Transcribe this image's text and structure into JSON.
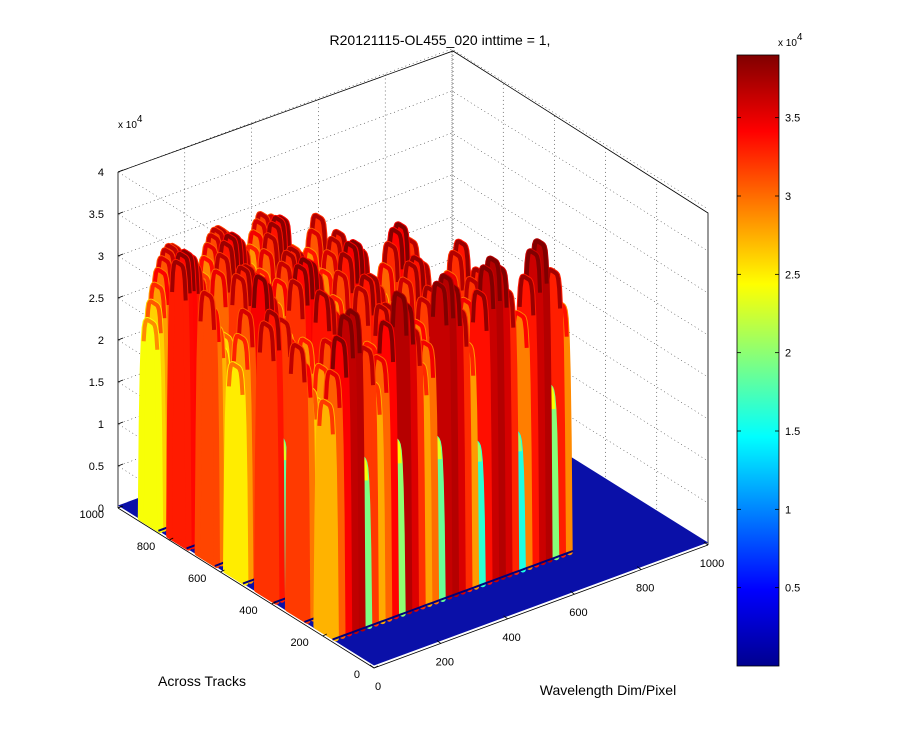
{
  "chart_data": {
    "type": "surface",
    "title": "R20121115-OL455_020 inttime = 1,",
    "xlabel": "Wavelength Dim/Pixel",
    "ylabel": "Across Tracks",
    "zlabel": "",
    "xlim": [
      0,
      1000
    ],
    "ylim": [
      0,
      1000
    ],
    "zlim": [
      0,
      40000
    ],
    "x_ticks": [
      "0",
      "200",
      "400",
      "600",
      "800",
      "1000"
    ],
    "y_ticks": [
      "0",
      "200",
      "400",
      "600",
      "800",
      "1000"
    ],
    "z_ticks": [
      "0",
      "0.5",
      "1",
      "1.5",
      "2",
      "2.5",
      "3",
      "3.5",
      "4"
    ],
    "z_multiplier": "x 10",
    "z_multiplier_exp": "4",
    "colormap": "jet",
    "grid": true,
    "colorbar": {
      "range": [
        0,
        39000
      ],
      "ticks": [
        "0.5",
        "1",
        "1.5",
        "2",
        "2.5",
        "3",
        "3.5"
      ],
      "multiplier": "x 10",
      "multiplier_exp": "4"
    },
    "bands": [
      {
        "y_center": 880,
        "peak": 32000,
        "x_start": 0,
        "x_end": 380
      },
      {
        "y_center": 770,
        "peak": 34000,
        "x_start": 0,
        "x_end": 430
      },
      {
        "y_center": 660,
        "peak": 33000,
        "x_start": 0,
        "x_end": 490
      },
      {
        "y_center": 550,
        "peak": 34500,
        "x_start": 0,
        "x_end": 540
      },
      {
        "y_center": 430,
        "peak": 33500,
        "x_start": 0,
        "x_end": 600
      },
      {
        "y_center": 310,
        "peak": 33000,
        "x_start": 0,
        "x_end": 650
      },
      {
        "y_center": 200,
        "peak": 37000,
        "x_start": 0,
        "x_end": 720
      }
    ]
  }
}
